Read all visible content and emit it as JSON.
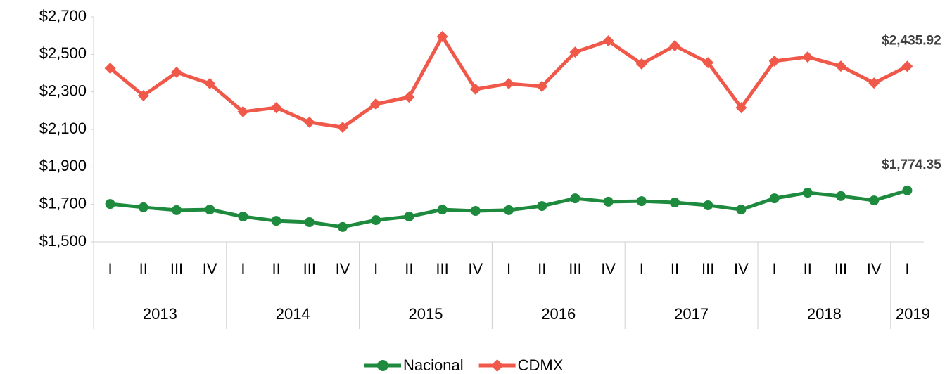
{
  "chart_data": {
    "type": "line",
    "groups": [
      {
        "label": "2013",
        "quarters": [
          "I",
          "II",
          "III",
          "IV"
        ]
      },
      {
        "label": "2014",
        "quarters": [
          "I",
          "II",
          "III",
          "IV"
        ]
      },
      {
        "label": "2015",
        "quarters": [
          "I",
          "II",
          "III",
          "IV"
        ]
      },
      {
        "label": "2016",
        "quarters": [
          "I",
          "II",
          "III",
          "IV"
        ]
      },
      {
        "label": "2017",
        "quarters": [
          "I",
          "II",
          "III",
          "IV"
        ]
      },
      {
        "label": "2018",
        "quarters": [
          "I",
          "II",
          "III",
          "IV"
        ]
      },
      {
        "label": "2019",
        "quarters": [
          "I"
        ]
      }
    ],
    "series": [
      {
        "name": "Nacional",
        "color": "#1e8a3e",
        "marker": "circle",
        "values": [
          1702,
          1684,
          1669,
          1672,
          1635,
          1612,
          1605,
          1579,
          1616,
          1635,
          1672,
          1665,
          1669,
          1691,
          1732,
          1714,
          1717,
          1710,
          1695,
          1672,
          1732,
          1762,
          1744,
          1721,
          1774.35
        ],
        "value_labels": [
          null,
          null,
          null,
          null,
          null,
          null,
          null,
          null,
          null,
          null,
          null,
          null,
          null,
          null,
          null,
          null,
          null,
          null,
          null,
          null,
          null,
          null,
          null,
          null,
          "$1,774.35"
        ]
      },
      {
        "name": "CDMX",
        "color": "#f0584a",
        "marker": "diamond",
        "values": [
          2426,
          2280,
          2404,
          2344,
          2194,
          2216,
          2138,
          2111,
          2235,
          2272,
          2595,
          2314,
          2344,
          2329,
          2512,
          2572,
          2449,
          2546,
          2456,
          2216,
          2464,
          2486,
          2437,
          2347,
          2435.92
        ],
        "value_labels": [
          null,
          null,
          null,
          null,
          null,
          null,
          null,
          null,
          null,
          null,
          null,
          null,
          null,
          null,
          null,
          null,
          null,
          null,
          null,
          null,
          null,
          null,
          null,
          null,
          "$2,435.92"
        ]
      }
    ],
    "ylim": [
      1500,
      2700
    ],
    "yticks": [
      {
        "value": 1500,
        "label": "$1,500"
      },
      {
        "value": 1700,
        "label": "$1,700"
      },
      {
        "value": 1900,
        "label": "$1,900"
      },
      {
        "value": 2100,
        "label": "$2,100"
      },
      {
        "value": 2300,
        "label": "$2,300"
      },
      {
        "value": 2500,
        "label": "$2,500"
      },
      {
        "value": 2700,
        "label": "$2,700"
      }
    ],
    "grid": false,
    "legend": "bottom"
  }
}
